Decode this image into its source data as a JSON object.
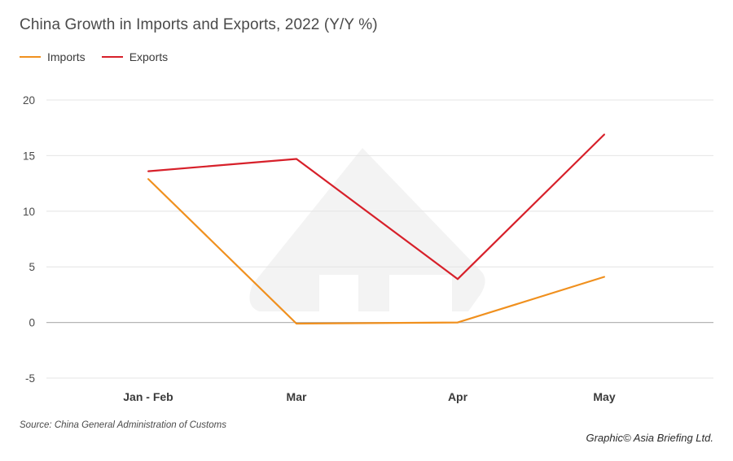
{
  "chart_data": {
    "type": "line",
    "title": "China Growth in Imports and Exports, 2022 (Y/Y %)",
    "categories": [
      "Jan - Feb",
      "Mar",
      "Apr",
      "May"
    ],
    "series": [
      {
        "name": "Imports",
        "values": [
          12.9,
          -0.1,
          0.0,
          4.1
        ],
        "color": "#f0901e"
      },
      {
        "name": "Exports",
        "values": [
          13.6,
          14.7,
          3.9,
          16.9
        ],
        "color": "#d7202a"
      }
    ],
    "ylim": [
      -5,
      20
    ],
    "yticks": [
      -5,
      0,
      5,
      10,
      15,
      20
    ],
    "xlabel": "",
    "ylabel": "",
    "grid": true,
    "legend_position": "top-left",
    "source": "Source: China General Administration of Customs",
    "credit": "Graphic© Asia Briefing Ltd."
  }
}
